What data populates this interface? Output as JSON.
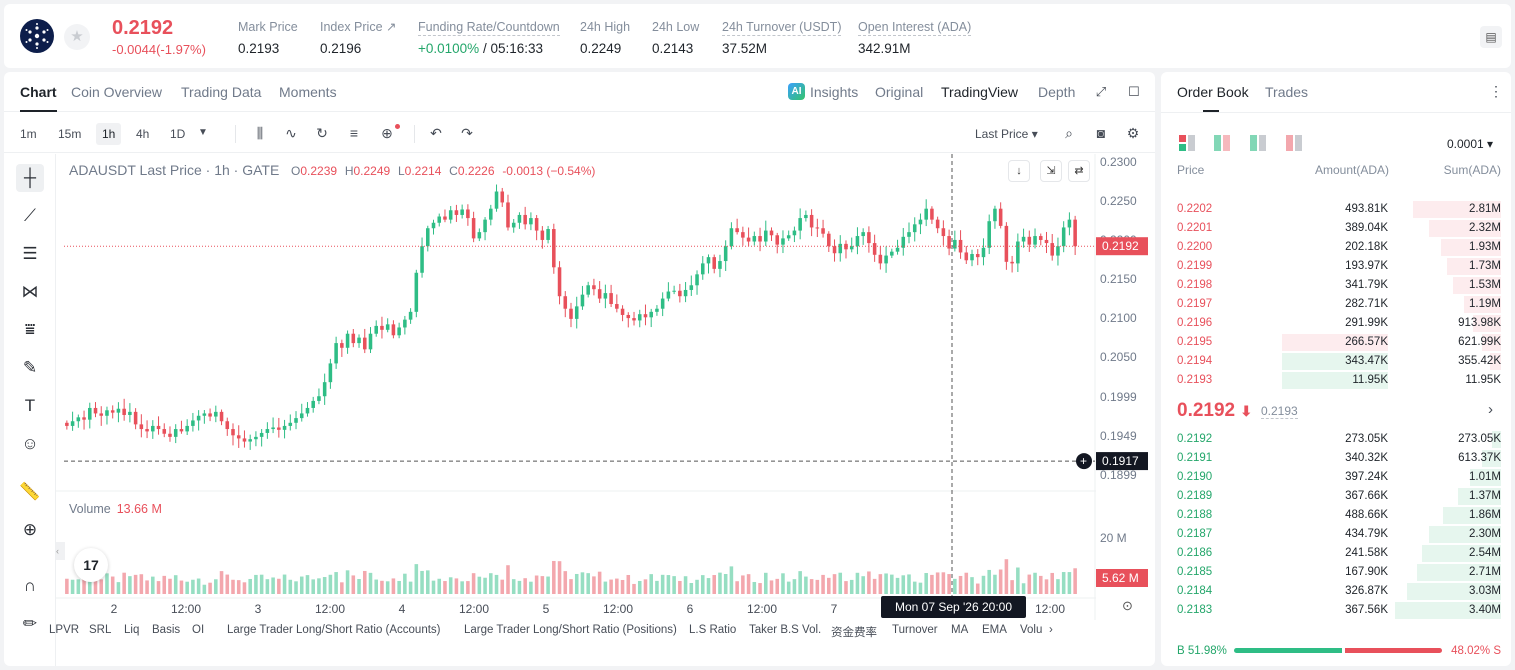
{
  "header": {
    "price": "0.2192",
    "change": "-0.0044(-1.97%)",
    "stats": [
      {
        "label": "Mark Price",
        "value": "0.2193"
      },
      {
        "label": "Index Price ↗",
        "value": "0.2196"
      },
      {
        "label": "Funding Rate/Countdown",
        "value_rate": "+0.0100%",
        "value_cd": "/ 05:16:33"
      },
      {
        "label": "24h High",
        "value": "0.2249"
      },
      {
        "label": "24h Low",
        "value": "0.2143"
      },
      {
        "label": "24h Turnover (USDT)",
        "value": "37.52M"
      },
      {
        "label": "Open Interest (ADA)",
        "value": "342.91M"
      }
    ]
  },
  "chart_tabs": [
    "Chart",
    "Coin Overview",
    "Trading Data",
    "Moments"
  ],
  "view_tabs": {
    "ai": "AI",
    "insights": "Insights",
    "original": "Original",
    "tradingview": "TradingView",
    "depth": "Depth"
  },
  "intervals": [
    "1m",
    "15m",
    "1h",
    "4h",
    "1D"
  ],
  "price_source": "Last Price",
  "legend": {
    "title": "ADAUSDT Last Price · 1h · GATE",
    "o_k": "O",
    "o": "0.2239",
    "h_k": "H",
    "h": "0.2249",
    "l_k": "L",
    "l": "0.2214",
    "c_k": "C",
    "c": "0.2226",
    "chg": "-0.0013 (−0.54%)"
  },
  "volume_legend": {
    "label": "Volume",
    "value": "13.66 M"
  },
  "crosshair_time": "Mon 07 Sep '26   20:00",
  "tv_logo": "17",
  "chart_data": {
    "type": "candlestick",
    "symbol": "ADAUSDT",
    "interval": "1h",
    "ylim": [
      0.188,
      0.231
    ],
    "y_ticks": [
      "0.2300",
      "0.2250",
      "0.2200",
      "0.2150",
      "0.2100",
      "0.2050",
      "0.1999",
      "0.1949",
      "0.1899"
    ],
    "x_ticks": [
      "2",
      "12:00",
      "3",
      "12:00",
      "4",
      "12:00",
      "5",
      "12:00",
      "6",
      "12:00",
      "7",
      "12:00"
    ],
    "last_price_label": "0.2192",
    "crosshair_price": "0.1917",
    "volume_axis_label": "20 M",
    "last_volume_label": "5.62 M",
    "close": [
      0.1962,
      0.1968,
      0.1973,
      0.197,
      0.1985,
      0.1978,
      0.1975,
      0.1982,
      0.1979,
      0.1984,
      0.1976,
      0.198,
      0.1964,
      0.1958,
      0.1955,
      0.1962,
      0.1958,
      0.1952,
      0.1948,
      0.1958,
      0.1955,
      0.1962,
      0.1969,
      0.1975,
      0.1978,
      0.1974,
      0.198,
      0.1968,
      0.1958,
      0.195,
      0.1946,
      0.1942,
      0.1945,
      0.1948,
      0.1953,
      0.1958,
      0.196,
      0.1957,
      0.1962,
      0.1966,
      0.1972,
      0.1978,
      0.1985,
      0.1994,
      0.2,
      0.2018,
      0.2042,
      0.2068,
      0.2062,
      0.208,
      0.2068,
      0.2075,
      0.206,
      0.208,
      0.209,
      0.2085,
      0.2092,
      0.2078,
      0.2088,
      0.2098,
      0.2108,
      0.2158,
      0.2192,
      0.2215,
      0.2222,
      0.223,
      0.2226,
      0.2238,
      0.2232,
      0.2239,
      0.2228,
      0.2202,
      0.221,
      0.2226,
      0.224,
      0.2262,
      0.2248,
      0.2216,
      0.2222,
      0.2232,
      0.222,
      0.2228,
      0.2212,
      0.22,
      0.2214,
      0.2165,
      0.2128,
      0.2112,
      0.2099,
      0.2115,
      0.213,
      0.2142,
      0.2137,
      0.2125,
      0.2132,
      0.2118,
      0.2112,
      0.2104,
      0.21,
      0.2097,
      0.2105,
      0.2101,
      0.2108,
      0.2112,
      0.2125,
      0.2134,
      0.2135,
      0.2128,
      0.2136,
      0.2142,
      0.2156,
      0.217,
      0.2178,
      0.2163,
      0.2173,
      0.2192,
      0.2215,
      0.221,
      0.2203,
      0.2198,
      0.2205,
      0.2198,
      0.2212,
      0.2206,
      0.2194,
      0.2202,
      0.2206,
      0.2212,
      0.2228,
      0.2232,
      0.2216,
      0.2215,
      0.2208,
      0.2192,
      0.2183,
      0.2195,
      0.2188,
      0.2192,
      0.2205,
      0.221,
      0.2196,
      0.2181,
      0.217,
      0.218,
      0.2185,
      0.219,
      0.2204,
      0.221,
      0.222,
      0.2226,
      0.224,
      0.2226,
      0.2215,
      0.2205,
      0.2189,
      0.22,
      0.2184,
      0.2174,
      0.2182,
      0.2178,
      0.219,
      0.2224,
      0.224,
      0.2218,
      0.2172,
      0.217,
      0.2198,
      0.2204,
      0.2194,
      0.2205,
      0.22,
      0.2196,
      0.218,
      0.2192,
      0.2216,
      0.2226,
      0.2192
    ]
  },
  "left_tool_icons": [
    "crosshair-icon",
    "trendline-icon",
    "horizontal-lines-icon",
    "pattern-icon",
    "fib-icon",
    "brush-icon",
    "text-icon",
    "emoji-icon",
    "ruler-icon",
    "zoom-icon",
    "magnet-icon",
    "pencil-lock-icon"
  ],
  "indicators": [
    "LPVR",
    "SRL",
    "Liq",
    "Basis",
    "OI",
    "Large Trader Long/Short Ratio (Accounts)",
    "Large Trader Long/Short Ratio (Positions)",
    "L.S Ratio",
    "Taker B.S Vol.",
    "资金费率",
    "Turnover",
    "MA",
    "EMA",
    "Volu"
  ],
  "orderbook": {
    "tabs": [
      "Order Book",
      "Trades"
    ],
    "precision": "0.0001",
    "headers": [
      "Price",
      "Amount(ADA)",
      "Sum(ADA)"
    ],
    "asks": [
      {
        "p": "0.2202",
        "a": "493.81K",
        "s": "2.81M"
      },
      {
        "p": "0.2201",
        "a": "389.04K",
        "s": "2.32M"
      },
      {
        "p": "0.2200",
        "a": "202.18K",
        "s": "1.93M"
      },
      {
        "p": "0.2199",
        "a": "193.97K",
        "s": "1.73M"
      },
      {
        "p": "0.2198",
        "a": "341.79K",
        "s": "1.53M"
      },
      {
        "p": "0.2197",
        "a": "282.71K",
        "s": "1.19M"
      },
      {
        "p": "0.2196",
        "a": "291.99K",
        "s": "913.98K"
      },
      {
        "p": "0.2195",
        "a": "266.57K",
        "s": "621.99K"
      },
      {
        "p": "0.2194",
        "a": "343.47K",
        "s": "355.42K"
      },
      {
        "p": "0.2193",
        "a": "11.95K",
        "s": "11.95K"
      }
    ],
    "mid_price": "0.2192",
    "mid_arrow": "⬇",
    "mark": "0.2193",
    "bids": [
      {
        "p": "0.2192",
        "a": "273.05K",
        "s": "273.05K"
      },
      {
        "p": "0.2191",
        "a": "340.32K",
        "s": "613.37K"
      },
      {
        "p": "0.2190",
        "a": "397.24K",
        "s": "1.01M"
      },
      {
        "p": "0.2189",
        "a": "367.66K",
        "s": "1.37M"
      },
      {
        "p": "0.2188",
        "a": "488.66K",
        "s": "1.86M"
      },
      {
        "p": "0.2187",
        "a": "434.79K",
        "s": "2.30M"
      },
      {
        "p": "0.2186",
        "a": "241.58K",
        "s": "2.54M"
      },
      {
        "p": "0.2185",
        "a": "167.90K",
        "s": "2.71M"
      },
      {
        "p": "0.2184",
        "a": "326.87K",
        "s": "3.03M"
      },
      {
        "p": "0.2183",
        "a": "367.56K",
        "s": "3.40M"
      }
    ],
    "buy_label": "B 51.98%",
    "sell_label": "48.02% S",
    "buy_ratio": 0.5198
  },
  "colors": {
    "up": "#2ebd85",
    "down": "#e8505b",
    "up_light": "#e6f6ee",
    "down_light": "#fdecee"
  }
}
